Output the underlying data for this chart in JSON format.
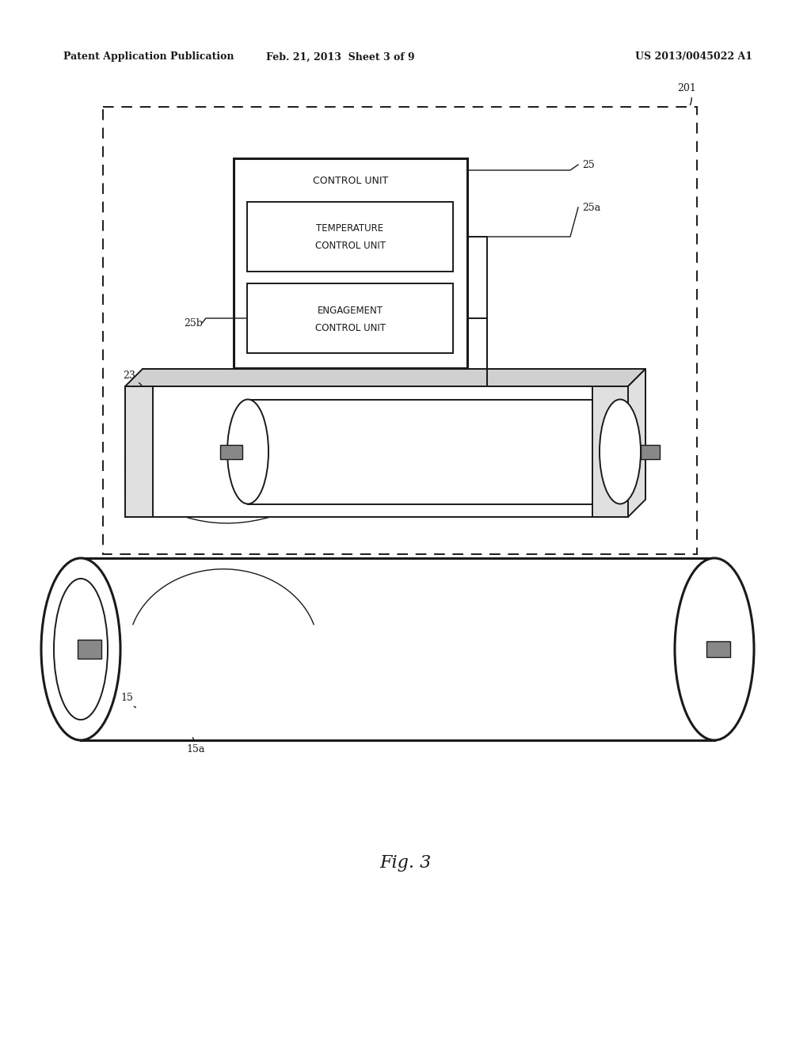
{
  "bg_color": "#ffffff",
  "text_color": "#1a1a1a",
  "header_left": "Patent Application Publication",
  "header_center": "Feb. 21, 2013  Sheet 3 of 9",
  "header_right": "US 2013/0045022 A1",
  "fig_label": "Fig. 3",
  "lw_main": 1.4,
  "lw_thick": 2.2,
  "lw_thin": 1.0,
  "lw_dash": 1.4
}
